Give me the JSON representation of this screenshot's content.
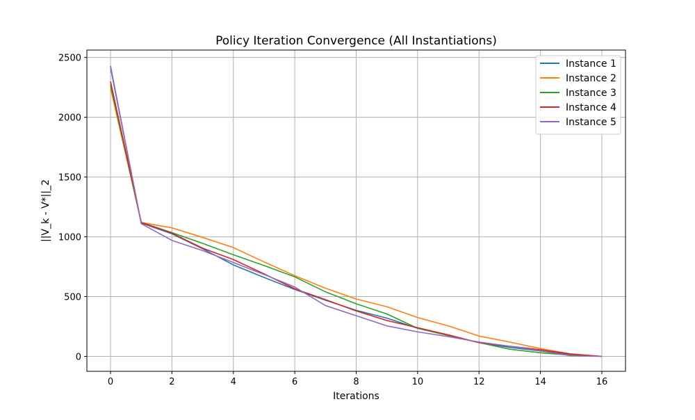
{
  "chart_data": {
    "type": "line",
    "title": "Policy Iteration Convergence (All Instantiations)",
    "xlabel": "Iterations",
    "ylabel": "||V_k - V*||_2",
    "xlim": [
      -0.77,
      16.77
    ],
    "ylim": [
      -125,
      2562
    ],
    "xticks": [
      0,
      2,
      4,
      6,
      8,
      10,
      12,
      14,
      16
    ],
    "yticks": [
      0,
      500,
      1000,
      1500,
      2000,
      2500
    ],
    "grid": true,
    "legend_position": "top-right",
    "x": [
      0,
      1,
      2,
      3,
      4,
      5,
      6,
      7,
      8,
      9,
      10,
      11,
      12,
      13,
      14,
      15,
      16
    ],
    "series": [
      {
        "name": "Instance 1",
        "color": "#1f77b4",
        "values": [
          2415,
          1115,
          1025,
          900,
          765,
          660,
          560,
          470,
          385,
          320,
          235,
          175,
          115,
          75,
          45,
          15,
          0
        ]
      },
      {
        "name": "Instance 2",
        "color": "#ff7f0e",
        "values": [
          2245,
          1120,
          1075,
          995,
          910,
          790,
          675,
          570,
          480,
          415,
          325,
          255,
          170,
          120,
          65,
          20,
          0
        ]
      },
      {
        "name": "Instance 3",
        "color": "#2ca02c",
        "values": [
          2270,
          1120,
          1035,
          945,
          850,
          760,
          665,
          540,
          440,
          355,
          235,
          175,
          115,
          60,
          30,
          10,
          0
        ]
      },
      {
        "name": "Instance 4",
        "color": "#d62728",
        "values": [
          2300,
          1120,
          1030,
          905,
          810,
          690,
          565,
          475,
          380,
          300,
          240,
          180,
          115,
          85,
          55,
          20,
          0
        ]
      },
      {
        "name": "Instance 5",
        "color": "#9467bd",
        "values": [
          2430,
          1110,
          970,
          885,
          785,
          685,
          580,
          425,
          340,
          255,
          205,
          165,
          120,
          85,
          45,
          5,
          0
        ]
      }
    ]
  }
}
